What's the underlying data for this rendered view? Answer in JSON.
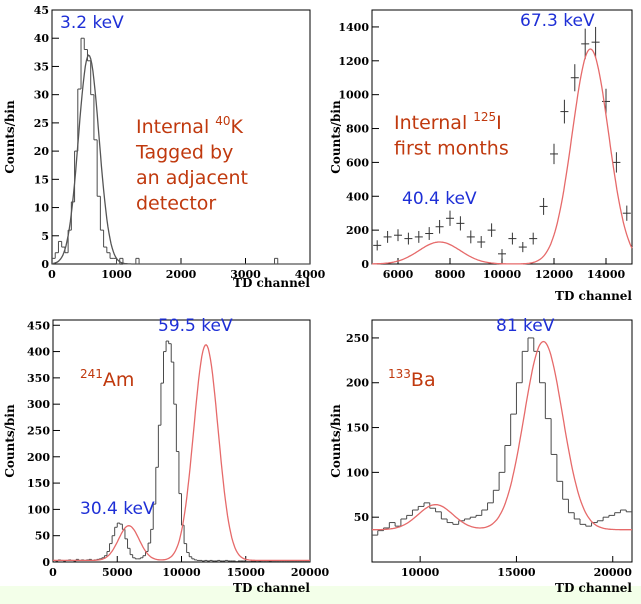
{
  "colors": {
    "background": "#ffffff",
    "panel_bg": "#ffffff",
    "histogram": "#4a4a4a",
    "fit": "#e66a6a",
    "peak_label": "#1e2fd6",
    "annotation": "#c0390e",
    "bottom_band": "#f3ffe9"
  },
  "chart_data": [
    {
      "type": "histogram-with-fit",
      "title": "",
      "xlabel": "TD channel",
      "ylabel": "Counts/bin",
      "xlim": [
        0,
        4000
      ],
      "ylim": [
        0,
        45
      ],
      "xticks": [
        0,
        1000,
        2000,
        3000,
        4000
      ],
      "yticks": [
        0,
        5,
        10,
        15,
        20,
        25,
        30,
        35,
        40,
        45
      ],
      "peak_labels": [
        "3.2 keV"
      ],
      "annotation_lines": [
        {
          "pre": "Internal ",
          "sup": "40",
          "post": "K"
        },
        {
          "pre": "Tagged by",
          "sup": "",
          "post": ""
        },
        {
          "pre": "an adjacent",
          "sup": "",
          "post": ""
        },
        {
          "pre": "detector",
          "sup": "",
          "post": ""
        }
      ],
      "histogram": {
        "bin_width": 50,
        "bins_start": 0,
        "counts": [
          1,
          2,
          4,
          3,
          2,
          6,
          11,
          20,
          31,
          40,
          38,
          36,
          30,
          22,
          12,
          6,
          3,
          2,
          1,
          1,
          0,
          1,
          0,
          0,
          0,
          0,
          1,
          0,
          0,
          0,
          0,
          0,
          0,
          0,
          0,
          0,
          0,
          0,
          0,
          0,
          0,
          0,
          0,
          0,
          0,
          0,
          0,
          0,
          0,
          0,
          0,
          0,
          0,
          0,
          0,
          0,
          0,
          0,
          0,
          0,
          0,
          0,
          0,
          0,
          0,
          0,
          0,
          0,
          0,
          1,
          0,
          0,
          0,
          0,
          0,
          0,
          0,
          0,
          0,
          0
        ]
      },
      "fit": [
        {
          "amp": 37,
          "mu": 570,
          "sigma": 160
        }
      ]
    },
    {
      "type": "histogram-with-fit",
      "title": "",
      "xlabel": "TD channel",
      "ylabel": "Counts/bin",
      "xlim": [
        5000,
        15000
      ],
      "ylim": [
        0,
        1500
      ],
      "xticks": [
        6000,
        8000,
        10000,
        12000,
        14000
      ],
      "yticks": [
        0,
        200,
        400,
        600,
        800,
        1000,
        1200,
        1400
      ],
      "peak_labels": [
        "67.3 keV",
        "40.4 keV"
      ],
      "annotation_lines": [
        {
          "pre": "Internal ",
          "sup": "125",
          "post": "I"
        },
        {
          "pre": "first months",
          "sup": "",
          "post": ""
        }
      ],
      "points": {
        "x": [
          5200,
          5600,
          6000,
          6400,
          6800,
          7200,
          7600,
          8000,
          8400,
          8800,
          9200,
          9600,
          10000,
          10400,
          10800,
          11200,
          11600,
          12000,
          12400,
          12800,
          13200,
          13600,
          14000,
          14400,
          14800
        ],
        "y": [
          110,
          160,
          170,
          150,
          160,
          180,
          220,
          270,
          240,
          160,
          130,
          200,
          60,
          150,
          100,
          150,
          340,
          650,
          900,
          1100,
          1300,
          1310,
          960,
          600,
          300
        ],
        "err": [
          30,
          35,
          35,
          35,
          35,
          38,
          40,
          45,
          42,
          38,
          35,
          40,
          28,
          35,
          30,
          35,
          50,
          60,
          70,
          80,
          90,
          90,
          75,
          60,
          45
        ]
      },
      "fit": [
        {
          "amp": 130,
          "mu": 7600,
          "sigma": 800
        },
        {
          "amp": 1270,
          "mu": 13400,
          "sigma": 700
        }
      ],
      "fit_baseline": 0
    },
    {
      "type": "histogram-with-fit",
      "title": "",
      "xlabel": "TD channel",
      "ylabel": "Counts/bin",
      "xlim": [
        0,
        20000
      ],
      "ylim": [
        0,
        460
      ],
      "xticks": [
        0,
        5000,
        10000,
        15000,
        20000
      ],
      "yticks": [
        0,
        50,
        100,
        150,
        200,
        250,
        300,
        350,
        400,
        450
      ],
      "peak_labels": [
        "59.5 keV",
        "30.4 keV"
      ],
      "annotation_lines": [
        {
          "pre": "",
          "sup": "241",
          "post": "Am"
        }
      ],
      "histogram": {
        "bin_width": 200,
        "bins_start": 0,
        "counts": [
          3,
          2,
          4,
          3,
          2,
          3,
          4,
          3,
          2,
          5,
          3,
          4,
          3,
          4,
          5,
          3,
          4,
          5,
          6,
          8,
          12,
          20,
          35,
          50,
          66,
          74,
          72,
          62,
          44,
          26,
          14,
          8,
          6,
          6,
          8,
          12,
          20,
          36,
          62,
          110,
          180,
          260,
          340,
          400,
          420,
          415,
          380,
          300,
          210,
          130,
          70,
          35,
          18,
          10,
          6,
          4,
          3,
          3,
          2,
          3,
          2,
          3,
          2,
          2,
          3,
          2,
          2,
          3,
          2,
          2,
          2,
          1,
          2,
          2,
          2,
          1,
          1,
          2,
          2,
          1,
          2,
          1,
          1,
          1,
          2,
          1,
          1,
          1,
          1,
          1,
          1,
          1,
          1,
          1,
          1,
          1,
          1,
          1,
          1,
          1
        ]
      },
      "fit": [
        {
          "amp": 66,
          "mu": 5900,
          "sigma": 800
        },
        {
          "amp": 410,
          "mu": 11900,
          "sigma": 950
        }
      ],
      "fit_baseline": 3
    },
    {
      "type": "histogram-with-fit",
      "title": "",
      "xlabel": "TD channel",
      "ylabel": "Counts/bin",
      "xlim": [
        7500,
        21000
      ],
      "ylim": [
        0,
        270
      ],
      "xticks": [
        10000,
        15000,
        20000
      ],
      "yticks": [
        50,
        100,
        150,
        200,
        250
      ],
      "peak_labels": [
        "81 keV"
      ],
      "annotation_lines": [
        {
          "pre": "",
          "sup": "133",
          "post": "Ba"
        }
      ],
      "histogram": {
        "bin_width": 300,
        "bins_start": 7500,
        "counts": [
          30,
          35,
          38,
          44,
          40,
          48,
          52,
          58,
          62,
          66,
          60,
          56,
          48,
          44,
          42,
          46,
          48,
          50,
          52,
          58,
          66,
          80,
          100,
          130,
          165,
          200,
          235,
          250,
          235,
          200,
          160,
          120,
          90,
          70,
          55,
          48,
          42,
          40,
          44,
          46,
          50,
          52,
          55,
          58,
          56
        ]
      },
      "fit": [
        {
          "amp": 28,
          "mu": 10800,
          "sigma": 900
        },
        {
          "amp": 210,
          "mu": 16400,
          "sigma": 1000
        }
      ],
      "fit_baseline": 36
    }
  ]
}
